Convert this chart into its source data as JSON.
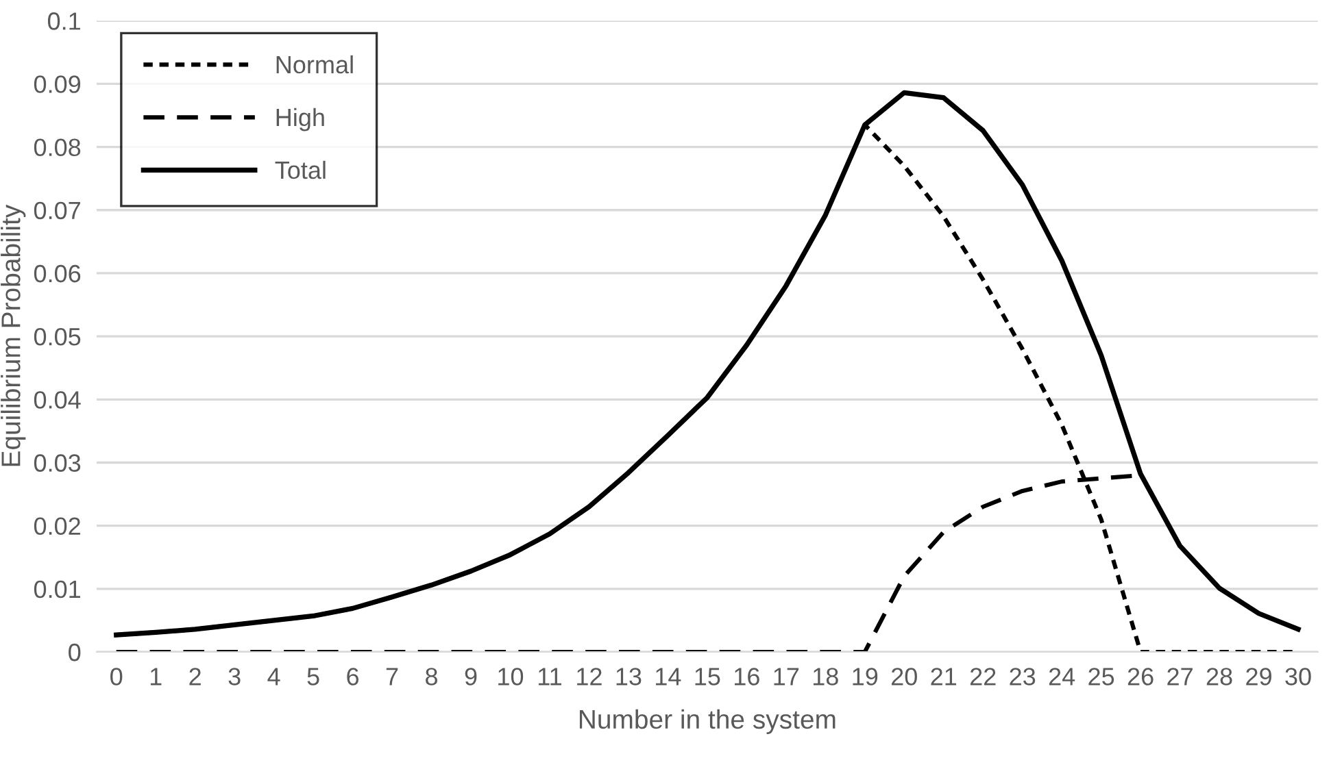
{
  "chart_data": {
    "type": "line",
    "xlabel": "Number in the system",
    "ylabel": "Equilibrium Probability",
    "categories": [
      "0",
      "1",
      "2",
      "3",
      "4",
      "5",
      "6",
      "7",
      "8",
      "9",
      "10",
      "11",
      "12",
      "13",
      "14",
      "15",
      "16",
      "17",
      "18",
      "19",
      "20",
      "21",
      "22",
      "23",
      "24",
      "25",
      "26",
      "27",
      "28",
      "29",
      "30"
    ],
    "series": [
      {
        "name": "Normal",
        "color": "#000000",
        "line_style": "dotted",
        "values": [
          0.0027,
          0.0031,
          0.0036,
          0.0043,
          0.005,
          0.0057,
          0.0069,
          0.0087,
          0.0106,
          0.0128,
          0.0154,
          0.0187,
          0.023,
          0.0284,
          0.0343,
          0.0403,
          0.0486,
          0.058,
          0.0692,
          0.0835,
          0.077,
          0.069,
          0.059,
          0.048,
          0.036,
          0.021,
          0,
          0,
          0,
          0,
          0
        ]
      },
      {
        "name": "High",
        "color": "#000000",
        "line_style": "dashed",
        "values": [
          0,
          0,
          0,
          0,
          0,
          0,
          0,
          0,
          0,
          0,
          0,
          0,
          0,
          0,
          0,
          0,
          0,
          0,
          0,
          0,
          0.012,
          0.019,
          0.023,
          0.0255,
          0.027,
          0.0275,
          0.028,
          null,
          null,
          null,
          null
        ]
      },
      {
        "name": "Total",
        "color": "#000000",
        "line_style": "solid",
        "values": [
          0.0027,
          0.0031,
          0.0036,
          0.0043,
          0.005,
          0.0057,
          0.0069,
          0.0087,
          0.0106,
          0.0128,
          0.0154,
          0.0187,
          0.023,
          0.0284,
          0.0343,
          0.0403,
          0.0486,
          0.058,
          0.0692,
          0.0835,
          0.0886,
          0.0878,
          0.0826,
          0.074,
          0.062,
          0.047,
          0.0282,
          0.0168,
          0.0101,
          0.0061,
          0.0036
        ]
      }
    ],
    "ylim": [
      0,
      0.1
    ],
    "yticks": [
      0,
      0.01,
      0.02,
      0.03,
      0.04,
      0.05,
      0.06,
      0.07,
      0.08,
      0.09,
      0.1
    ],
    "grid": "y",
    "legend": "top left",
    "marker": "none"
  }
}
